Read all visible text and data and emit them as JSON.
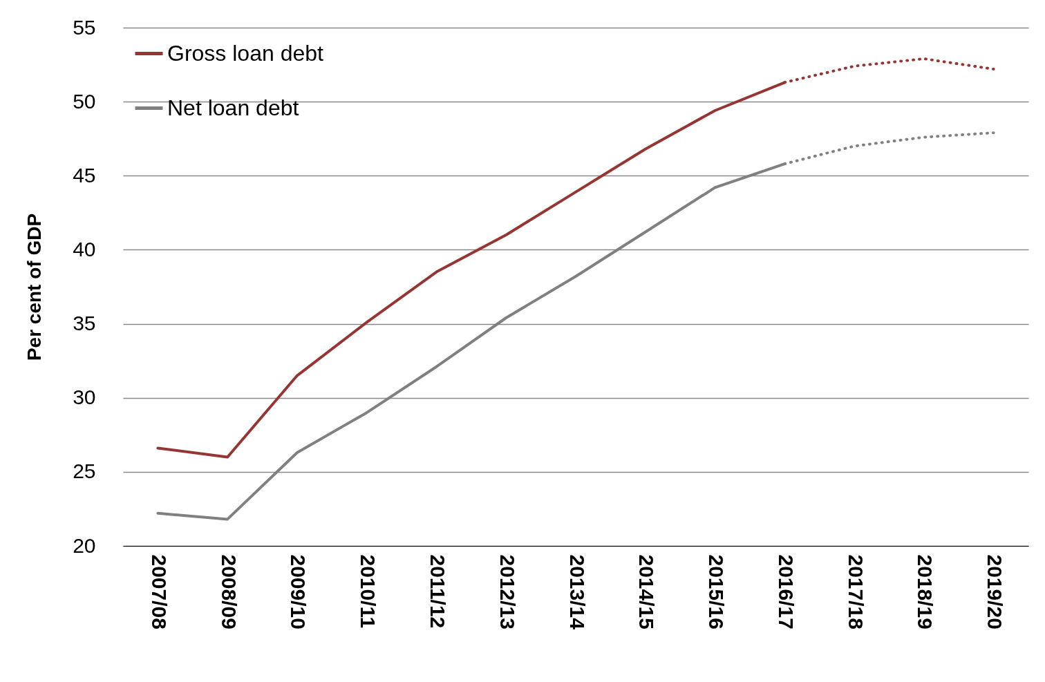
{
  "chart_data": {
    "type": "line",
    "ylabel": "Per cent of GDP",
    "categories": [
      "2007/08",
      "2008/09",
      "2009/10",
      "2010/11",
      "2011/12",
      "2012/13",
      "2013/14",
      "2014/15",
      "2015/16",
      "2016/17",
      "2017/18",
      "2018/19",
      "2019/20"
    ],
    "series": [
      {
        "name": "Gross loan debt",
        "color": "#943634",
        "line_style": "solid",
        "values": [
          26.6,
          26.0,
          31.5,
          35.1,
          38.5,
          41.0,
          43.9,
          46.8,
          49.4,
          51.3,
          null,
          null,
          null
        ]
      },
      {
        "name": "Net loan debt",
        "color": "#808080",
        "line_style": "solid",
        "values": [
          22.2,
          21.8,
          26.3,
          29.0,
          32.1,
          35.4,
          38.2,
          41.2,
          44.2,
          45.8,
          null,
          null,
          null
        ]
      },
      {
        "color": "#943634",
        "line_style": "dotted",
        "values": [
          null,
          null,
          null,
          null,
          null,
          null,
          null,
          null,
          null,
          51.3,
          52.4,
          52.9,
          52.2
        ]
      },
      {
        "color": "#808080",
        "line_style": "dotted",
        "values": [
          null,
          null,
          null,
          null,
          null,
          null,
          null,
          null,
          null,
          45.8,
          47.0,
          47.6,
          47.9
        ]
      }
    ],
    "ylim": [
      20,
      55
    ],
    "yticks": [
      20,
      25,
      30,
      35,
      40,
      45,
      50,
      55
    ],
    "grid": "y",
    "legend": "top left"
  }
}
